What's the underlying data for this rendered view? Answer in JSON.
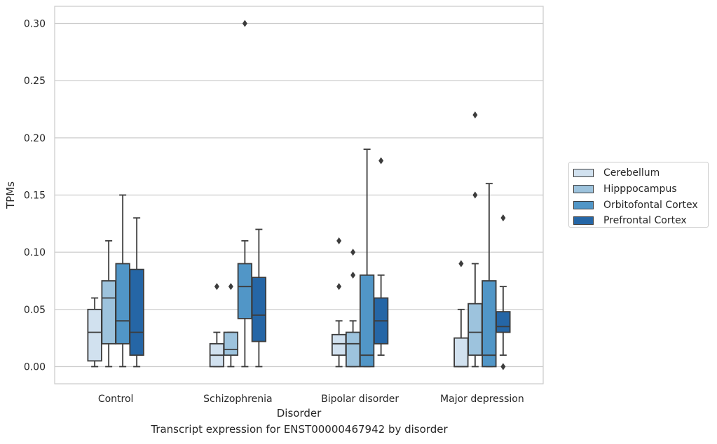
{
  "caption": "Transcript expression for ENST00000467942 by disorder",
  "legend": {
    "items": [
      {
        "label": "Cerebellum",
        "color": "#d1e1ef"
      },
      {
        "label": "Hipppocampus",
        "color": "#9dc3dd"
      },
      {
        "label": "Orbitofontal Cortex",
        "color": "#5196c7"
      },
      {
        "label": "Prefrontal Cortex",
        "color": "#2566a6"
      }
    ]
  },
  "chart_data": {
    "type": "box",
    "xlabel": "Disorder",
    "ylabel": "TPMs",
    "ylim": [
      -0.015,
      0.315
    ],
    "yticks": [
      0.0,
      0.05,
      0.1,
      0.15,
      0.2,
      0.25,
      0.3
    ],
    "ytick_labels": [
      "0.00",
      "0.05",
      "0.10",
      "0.15",
      "0.20",
      "0.25",
      "0.30"
    ],
    "grid": "horizontal",
    "legend_position": "right",
    "categories": [
      "Control",
      "Schizophrenia",
      "Bipolar disorder",
      "Major depression"
    ],
    "series": [
      {
        "name": "Cerebellum",
        "color": "#d1e1ef",
        "boxes": [
          {
            "whislo": 0.0,
            "q1": 0.005,
            "med": 0.03,
            "q3": 0.05,
            "whishi": 0.06,
            "fliers": []
          },
          {
            "whislo": 0.0,
            "q1": 0.0,
            "med": 0.01,
            "q3": 0.02,
            "whishi": 0.03,
            "fliers": [
              0.07
            ]
          },
          {
            "whislo": 0.0,
            "q1": 0.01,
            "med": 0.02,
            "q3": 0.028,
            "whishi": 0.04,
            "fliers": [
              0.07,
              0.11
            ]
          },
          {
            "whislo": 0.0,
            "q1": 0.0,
            "med": 0.0,
            "q3": 0.025,
            "whishi": 0.05,
            "fliers": [
              0.09
            ]
          }
        ]
      },
      {
        "name": "Hipppocampus",
        "color": "#9dc3dd",
        "boxes": [
          {
            "whislo": 0.0,
            "q1": 0.02,
            "med": 0.06,
            "q3": 0.075,
            "whishi": 0.11,
            "fliers": []
          },
          {
            "whislo": 0.0,
            "q1": 0.01,
            "med": 0.015,
            "q3": 0.03,
            "whishi": 0.03,
            "fliers": [
              0.07
            ]
          },
          {
            "whislo": 0.0,
            "q1": 0.0,
            "med": 0.02,
            "q3": 0.03,
            "whishi": 0.04,
            "fliers": [
              0.08,
              0.1
            ]
          },
          {
            "whislo": 0.0,
            "q1": 0.01,
            "med": 0.03,
            "q3": 0.055,
            "whishi": 0.09,
            "fliers": [
              0.15,
              0.22
            ]
          }
        ]
      },
      {
        "name": "Orbitofontal Cortex",
        "color": "#5196c7",
        "boxes": [
          {
            "whislo": 0.0,
            "q1": 0.02,
            "med": 0.04,
            "q3": 0.09,
            "whishi": 0.15,
            "fliers": []
          },
          {
            "whislo": 0.0,
            "q1": 0.042,
            "med": 0.07,
            "q3": 0.09,
            "whishi": 0.11,
            "fliers": [
              0.3
            ]
          },
          {
            "whislo": 0.0,
            "q1": 0.0,
            "med": 0.01,
            "q3": 0.08,
            "whishi": 0.19,
            "fliers": []
          },
          {
            "whislo": 0.0,
            "q1": 0.0,
            "med": 0.01,
            "q3": 0.075,
            "whishi": 0.16,
            "fliers": []
          }
        ]
      },
      {
        "name": "Prefrontal Cortex",
        "color": "#2566a6",
        "boxes": [
          {
            "whislo": 0.0,
            "q1": 0.01,
            "med": 0.03,
            "q3": 0.085,
            "whishi": 0.13,
            "fliers": []
          },
          {
            "whislo": 0.0,
            "q1": 0.022,
            "med": 0.045,
            "q3": 0.078,
            "whishi": 0.12,
            "fliers": []
          },
          {
            "whislo": 0.01,
            "q1": 0.02,
            "med": 0.04,
            "q3": 0.06,
            "whishi": 0.08,
            "fliers": [
              0.18
            ]
          },
          {
            "whislo": 0.01,
            "q1": 0.03,
            "med": 0.035,
            "q3": 0.048,
            "whishi": 0.07,
            "fliers": [
              0.0,
              0.13
            ]
          }
        ]
      }
    ]
  }
}
